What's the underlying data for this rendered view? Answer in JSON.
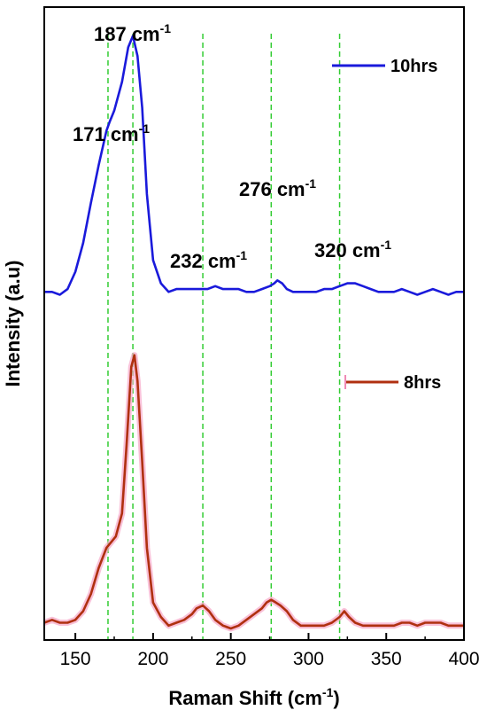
{
  "chart_data": {
    "type": "line",
    "xlabel": "Raman Shift (cm",
    "xlabel_sup": "-1",
    "xlabel_tail": ")",
    "ylabel": "Intensity (a.u)",
    "xlim": [
      130,
      400
    ],
    "ylim": [
      0,
      2.2
    ],
    "xticks": [
      150,
      200,
      250,
      300,
      350,
      400
    ],
    "grid": false,
    "legend_placement": "right",
    "y_tick_labels_shown": false,
    "reference_lines": [
      171,
      187,
      232,
      276,
      320
    ],
    "reference_line_color": "#33cc33",
    "annotations": [
      {
        "text": "187 cm",
        "sup": "-1"
      },
      {
        "text": "171 cm",
        "sup": "-1"
      },
      {
        "text": "276 cm",
        "sup": "-1"
      },
      {
        "text": "232 cm",
        "sup": "-1"
      },
      {
        "text": "320 cm",
        "sup": "-1"
      }
    ],
    "series": [
      {
        "name": "10hrs",
        "color": "#1a1adb",
        "x": [
          130,
          135,
          140,
          145,
          150,
          155,
          160,
          165,
          170,
          172,
          175,
          180,
          184,
          187,
          190,
          193,
          196,
          200,
          205,
          210,
          215,
          220,
          225,
          230,
          235,
          240,
          245,
          250,
          255,
          260,
          265,
          270,
          275,
          278,
          280,
          283,
          286,
          290,
          295,
          300,
          305,
          310,
          315,
          320,
          325,
          330,
          335,
          340,
          345,
          350,
          355,
          360,
          365,
          370,
          375,
          380,
          385,
          390,
          395,
          400
        ],
        "y": [
          1.21,
          1.21,
          1.2,
          1.22,
          1.28,
          1.38,
          1.52,
          1.65,
          1.77,
          1.8,
          1.84,
          1.94,
          2.06,
          2.1,
          2.03,
          1.85,
          1.55,
          1.32,
          1.24,
          1.21,
          1.22,
          1.22,
          1.22,
          1.22,
          1.22,
          1.23,
          1.22,
          1.22,
          1.22,
          1.21,
          1.21,
          1.22,
          1.23,
          1.24,
          1.25,
          1.24,
          1.22,
          1.21,
          1.21,
          1.21,
          1.21,
          1.22,
          1.22,
          1.23,
          1.24,
          1.24,
          1.23,
          1.22,
          1.21,
          1.21,
          1.21,
          1.22,
          1.21,
          1.2,
          1.21,
          1.22,
          1.21,
          1.2,
          1.21,
          1.21
        ]
      },
      {
        "name": "8hrs",
        "color": "#b03010",
        "x": [
          130,
          135,
          140,
          145,
          150,
          155,
          160,
          165,
          170,
          173,
          176,
          180,
          183,
          186,
          188,
          190,
          193,
          196,
          200,
          205,
          210,
          215,
          220,
          225,
          228,
          232,
          236,
          240,
          245,
          250,
          255,
          260,
          265,
          270,
          273,
          276,
          279,
          282,
          286,
          290,
          295,
          300,
          305,
          310,
          315,
          320,
          323,
          326,
          330,
          335,
          340,
          345,
          350,
          355,
          360,
          365,
          370,
          375,
          380,
          385,
          390,
          395,
          400
        ],
        "y": [
          0.06,
          0.07,
          0.06,
          0.06,
          0.07,
          0.1,
          0.16,
          0.25,
          0.32,
          0.34,
          0.36,
          0.44,
          0.68,
          0.95,
          0.99,
          0.9,
          0.62,
          0.32,
          0.13,
          0.08,
          0.05,
          0.06,
          0.07,
          0.09,
          0.11,
          0.12,
          0.1,
          0.07,
          0.05,
          0.04,
          0.05,
          0.07,
          0.09,
          0.11,
          0.13,
          0.14,
          0.13,
          0.12,
          0.1,
          0.07,
          0.05,
          0.05,
          0.05,
          0.05,
          0.06,
          0.08,
          0.1,
          0.08,
          0.06,
          0.05,
          0.05,
          0.05,
          0.05,
          0.05,
          0.06,
          0.06,
          0.05,
          0.06,
          0.06,
          0.06,
          0.05,
          0.05,
          0.05
        ]
      }
    ]
  }
}
